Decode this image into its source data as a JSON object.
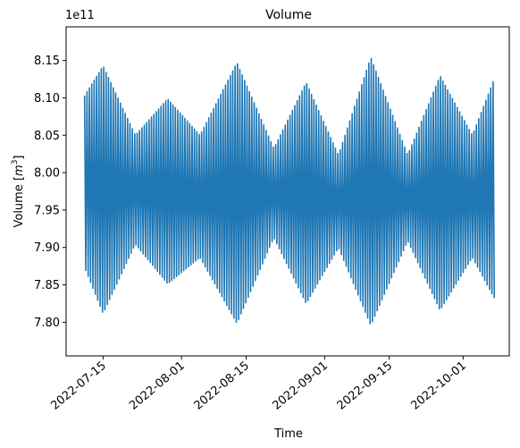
{
  "chart_data": {
    "type": "line",
    "title": "Volume",
    "xlabel": "Time",
    "ylabel": "Volume [m³]",
    "ylabel_base": "Volume [",
    "ylabel_unit": "m",
    "ylabel_exp": "3",
    "ylabel_close": "]",
    "y_offset_label": "1e11",
    "y_scale": 100000000000.0,
    "ylim": [
      7.755,
      8.195
    ],
    "xlim": [
      "2022-07-07",
      "2022-10-11"
    ],
    "x_ticks": [
      "2022-07-15",
      "2022-08-01",
      "2022-08-15",
      "2022-09-01",
      "2022-09-15",
      "2022-10-01"
    ],
    "y_ticks": [
      7.8,
      7.85,
      7.9,
      7.95,
      8.0,
      8.05,
      8.1,
      8.15
    ],
    "y_tick_labels": [
      "7.80",
      "7.85",
      "7.90",
      "7.95",
      "8.00",
      "8.05",
      "8.10",
      "8.15"
    ],
    "series": [
      {
        "color": "#1f77b4",
        "start": "2022-07-11",
        "end": "2022-10-08",
        "baseline": 7.975,
        "envelope_dates": [
          "2022-07-11",
          "2022-07-15",
          "2022-07-22",
          "2022-07-29",
          "2022-08-05",
          "2022-08-13",
          "2022-08-21",
          "2022-08-28",
          "2022-09-04",
          "2022-09-11",
          "2022-09-19",
          "2022-09-26",
          "2022-10-03",
          "2022-10-08"
        ],
        "envelope_max": [
          8.12,
          8.165,
          8.06,
          8.115,
          8.06,
          8.17,
          8.04,
          8.14,
          8.03,
          8.178,
          8.03,
          8.15,
          8.06,
          8.15
        ],
        "envelope_min": [
          7.86,
          7.79,
          7.895,
          7.835,
          7.875,
          7.775,
          7.905,
          7.805,
          7.89,
          7.772,
          7.9,
          7.795,
          7.875,
          7.81
        ]
      }
    ]
  }
}
